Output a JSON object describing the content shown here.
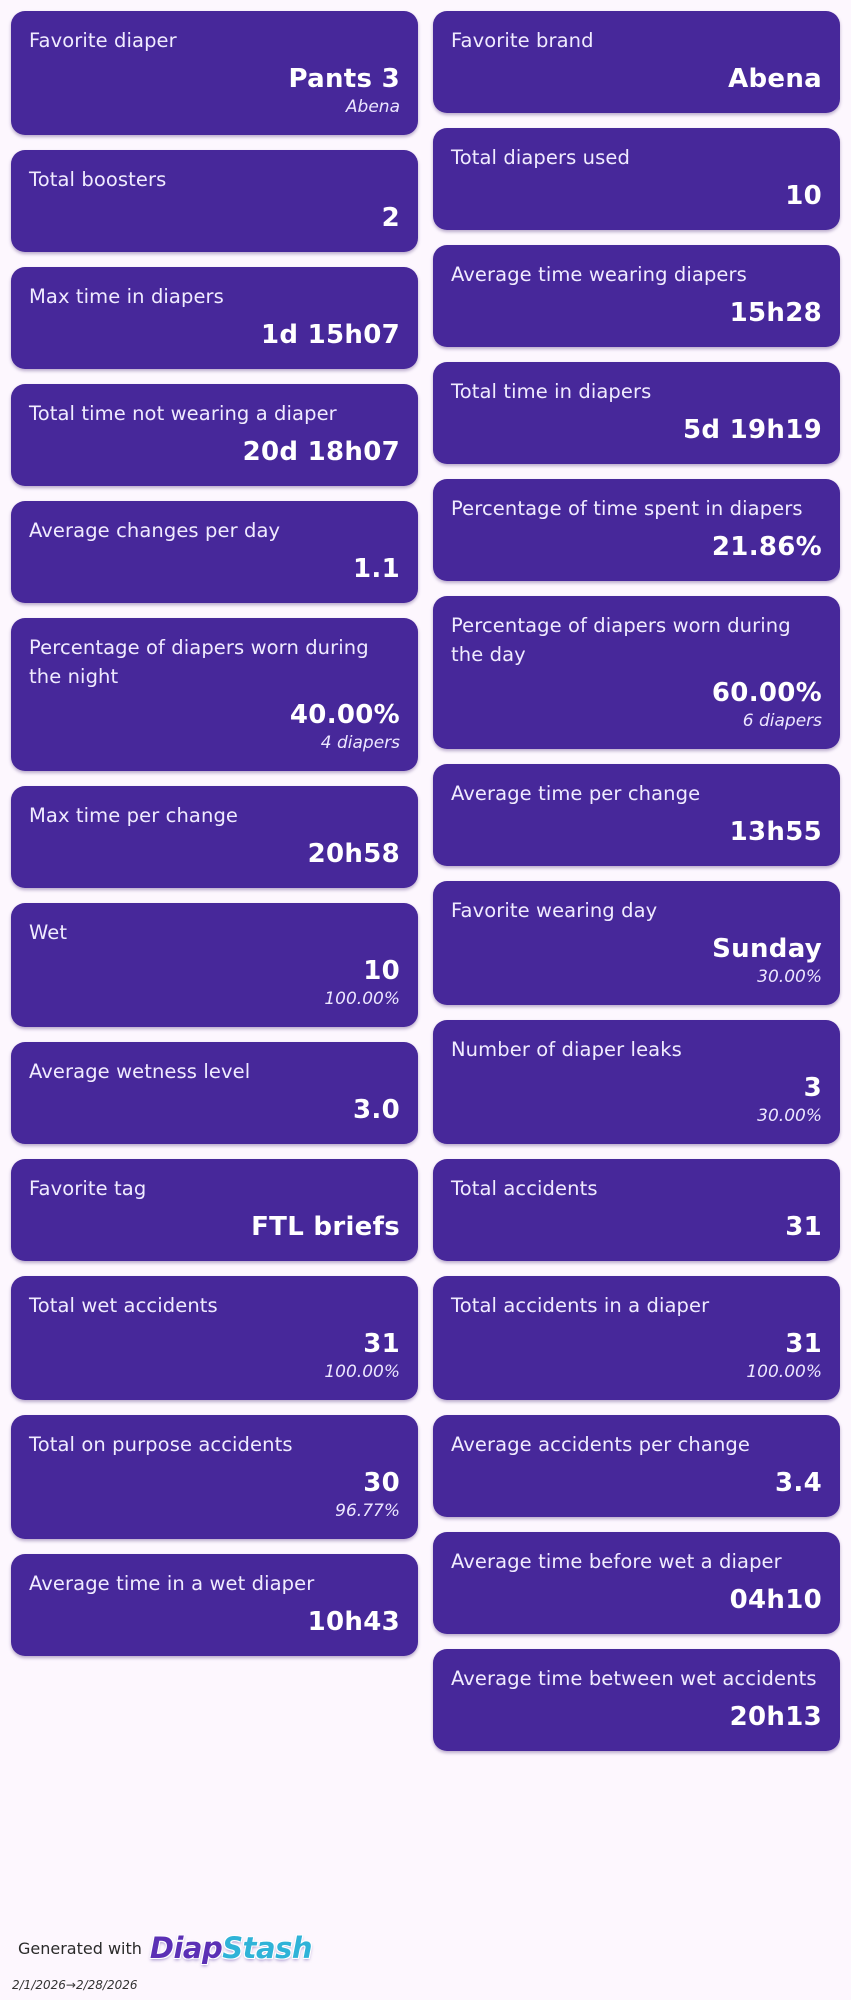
{
  "left_cards": [
    {
      "title": "Favorite diaper",
      "value": "Pants 3",
      "sub": "Abena"
    },
    {
      "title": "Total boosters",
      "value": "2",
      "sub": ""
    },
    {
      "title": "Max time in diapers",
      "value": "1d 15h07",
      "sub": ""
    },
    {
      "title": "Total time not wearing a diaper",
      "value": "20d 18h07",
      "sub": ""
    },
    {
      "title": "Average changes per day",
      "value": "1.1",
      "sub": ""
    },
    {
      "title": "Percentage of diapers worn during the night",
      "value": "40.00%",
      "sub": "4 diapers"
    },
    {
      "title": "Max time per change",
      "value": "20h58",
      "sub": ""
    },
    {
      "title": "Wet",
      "value": "10",
      "sub": "100.00%"
    },
    {
      "title": "Average wetness level",
      "value": "3.0",
      "sub": ""
    },
    {
      "title": "Favorite tag",
      "value": "FTL briefs",
      "sub": ""
    },
    {
      "title": "Total wet accidents",
      "value": "31",
      "sub": "100.00%"
    },
    {
      "title": "Total on purpose accidents",
      "value": "30",
      "sub": "96.77%"
    },
    {
      "title": "Average time in a wet diaper",
      "value": "10h43",
      "sub": ""
    }
  ],
  "right_cards": [
    {
      "title": "Favorite brand",
      "value": "Abena",
      "sub": ""
    },
    {
      "title": "Total diapers used",
      "value": "10",
      "sub": ""
    },
    {
      "title": "Average time wearing diapers",
      "value": "15h28",
      "sub": ""
    },
    {
      "title": "Total time in diapers",
      "value": "5d 19h19",
      "sub": ""
    },
    {
      "title": "Percentage of time spent in diapers",
      "value": "21.86%",
      "sub": ""
    },
    {
      "title": "Percentage of diapers worn during the day",
      "value": "60.00%",
      "sub": "6 diapers"
    },
    {
      "title": "Average time per change",
      "value": "13h55",
      "sub": ""
    },
    {
      "title": "Favorite wearing day",
      "value": "Sunday",
      "sub": "30.00%"
    },
    {
      "title": "Number of diaper leaks",
      "value": "3",
      "sub": "30.00%"
    },
    {
      "title": "Total accidents",
      "value": "31",
      "sub": ""
    },
    {
      "title": "Total accidents in a diaper",
      "value": "31",
      "sub": "100.00%"
    },
    {
      "title": "Average accidents per change",
      "value": "3.4",
      "sub": ""
    },
    {
      "title": "Average time before wet a diaper",
      "value": "04h10",
      "sub": ""
    },
    {
      "title": "Average time between wet accidents",
      "value": "20h13",
      "sub": ""
    }
  ],
  "footer": {
    "generated_with": "Generated with",
    "logo_part1": "Diap",
    "logo_part2": "Stash",
    "date_range": "2/1/2026→2/28/2026"
  },
  "colors": {
    "card_background": "#47289a",
    "page_background": "#fdf7fe",
    "logo_purple": "#5b30b5",
    "logo_blue": "#2fb3d8"
  }
}
